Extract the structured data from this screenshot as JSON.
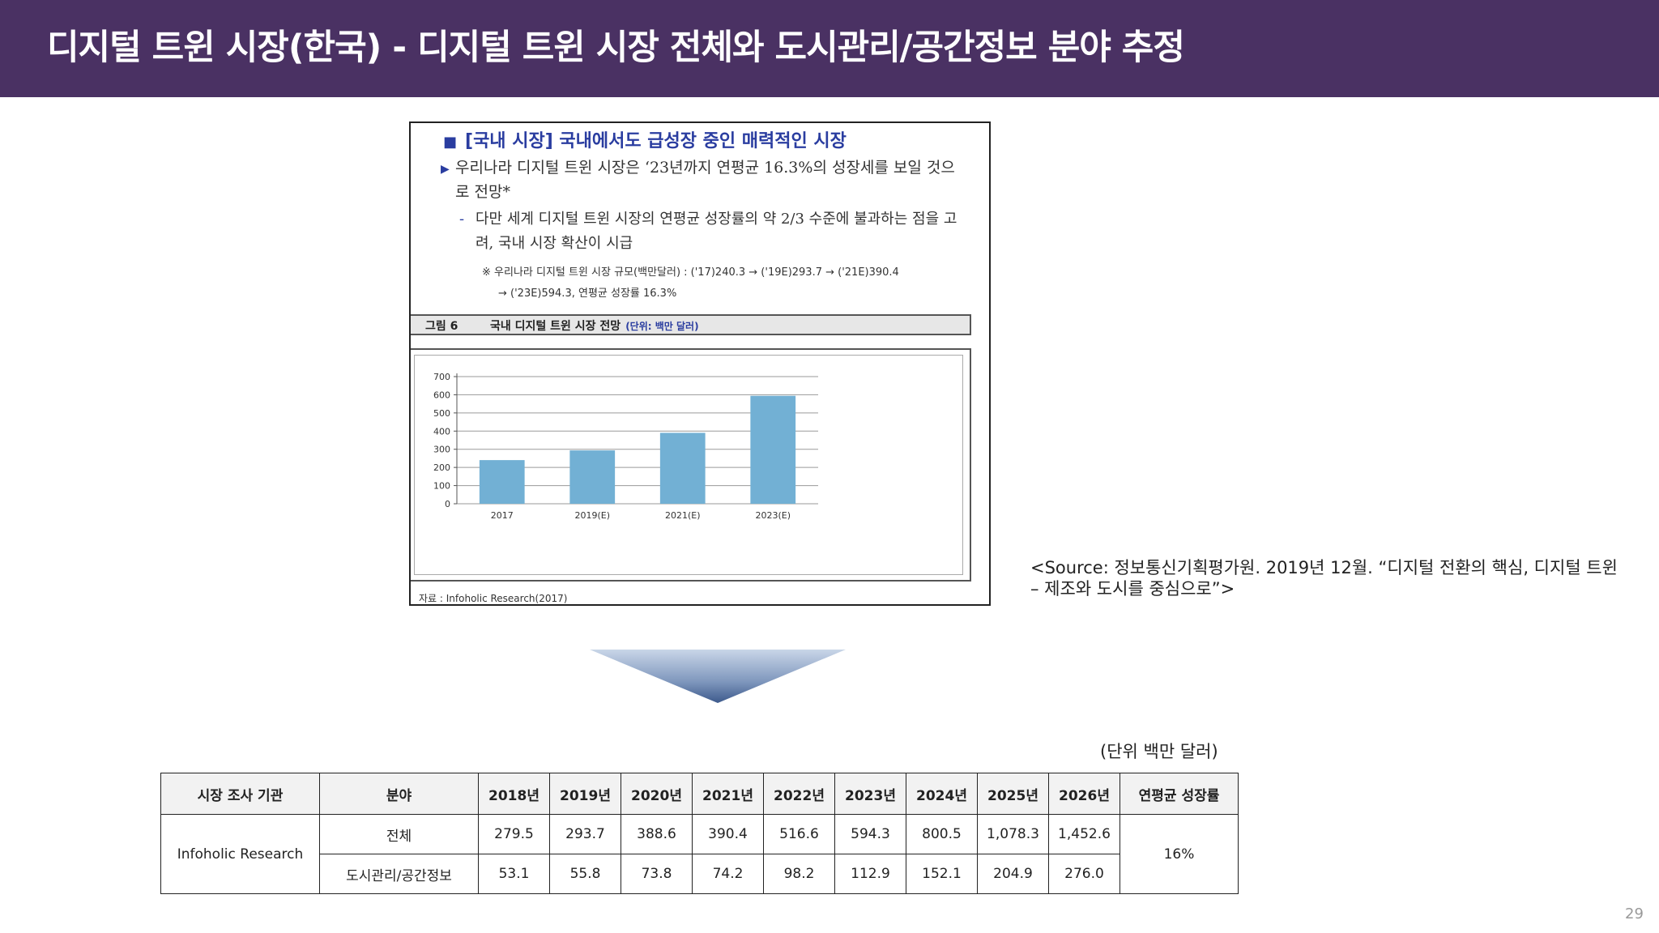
{
  "title": "디지털 트윈 시장(한국) - 디지털 트윈 시장 전체와 도시관리/공간정보 분야 추정",
  "report": {
    "heading_bullet": "■",
    "heading": "[국내 시장] 국내에서도 급성장 중인 매력적인 시장",
    "bullet_marker": "▶",
    "paragraph1": "우리나라 디지털 트윈 시장은 ‘23년까지 연평균 16.3%의 성장세를 보일 것으로 전망*",
    "dash": "-",
    "paragraph2": "다만 세계 디지털 트윈 시장의 연평균 성장률의 약 2/3 수준에 불과하는 점을 고려, 국내 시장 확산이 시급",
    "note_line1": "※ 우리나라 디지털 트윈 시장 규모(백만달러) : ('17)240.3 → ('19E)293.7 → ('21E)390.4",
    "note_line2": "→ ('23E)594.3, 연평균 성장률 16.3%",
    "figure_label": "그림 6",
    "figure_title": "국내 디지털 트윈 시장 전망",
    "figure_unit": "(단위: 백만 달러)",
    "source": "자료 : Infoholic Research(2017)"
  },
  "chart_data": {
    "type": "bar",
    "categories": [
      "2017",
      "2019(E)",
      "2021(E)",
      "2023(E)"
    ],
    "values": [
      240.3,
      293.7,
      390.4,
      594.3
    ],
    "yticks": [
      0,
      100,
      200,
      300,
      400,
      500,
      600,
      700
    ],
    "ylim": [
      0,
      700
    ],
    "grid": true,
    "bar_color": "#72b0d4"
  },
  "source_text": "<Source: 정보통신기획평가원. 2019년 12월. “디지털 전환의 핵심, 디지털 트윈 – 제조와 도시를 중심으로”>",
  "unit_note": "(단위 백만 달러)",
  "table": {
    "headers": [
      "시장 조사 기관",
      "분야",
      "2018년",
      "2019년",
      "2020년",
      "2021년",
      "2022년",
      "2023년",
      "2024년",
      "2025년",
      "2026년",
      "연평균 성장률"
    ],
    "org": "Infoholic Research",
    "rows": [
      {
        "field": "전체",
        "values": [
          "279.5",
          "293.7",
          "388.6",
          "390.4",
          "516.6",
          "594.3",
          "800.5",
          "1,078.3",
          "1,452.6"
        ]
      },
      {
        "field": "도시관리/공간정보",
        "values": [
          "53.1",
          "55.8",
          "73.8",
          "74.2",
          "98.2",
          "112.9",
          "152.1",
          "204.9",
          "276.0"
        ]
      }
    ],
    "cagr": "16%"
  },
  "page_number": "29",
  "colors": {
    "title_bar": "#4a3163",
    "accent_blue": "#2a3da0"
  }
}
